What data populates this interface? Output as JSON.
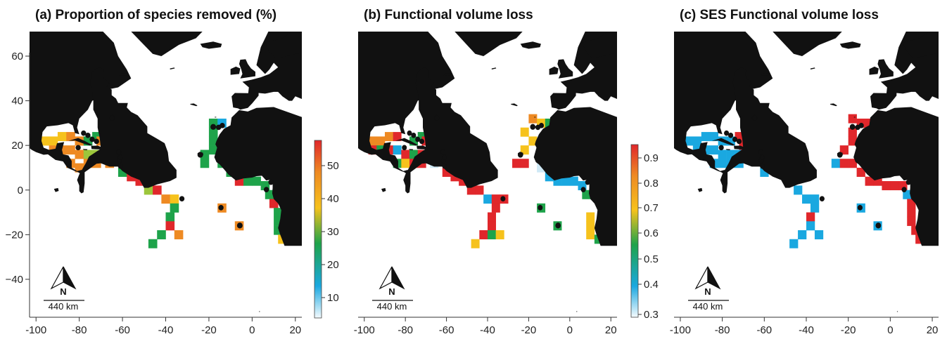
{
  "colors": {
    "land": "#111111",
    "red": "#e0272b",
    "orange": "#ee8a23",
    "yellow": "#f6c21c",
    "lime": "#9cc63b",
    "green": "#1ea34a",
    "blue": "#1aa8e0",
    "lightblue": "#cfe9f6",
    "axis": "#333333"
  },
  "x_ticks": [
    "-100",
    "-80",
    "-60",
    "-40",
    "-20",
    "0",
    "20"
  ],
  "y_ticks": [
    "60",
    "40",
    "20",
    "0",
    "−20",
    "−40"
  ],
  "scale_bar_label": "440 km",
  "north_label": "N",
  "panels": [
    {
      "id": "a",
      "title": "(a) Proportion of species removed (%)",
      "colorbar_ticks": [
        "50",
        "40",
        "30",
        "20",
        "10"
      ],
      "cells": [
        {
          "lon": -66,
          "lat": 32,
          "c": "green"
        },
        {
          "lon": -72,
          "lat": 24,
          "c": "green"
        },
        {
          "lon": -96,
          "lat": 22,
          "c": "yellow"
        },
        {
          "lon": -92,
          "lat": 22,
          "c": "yellow"
        },
        {
          "lon": -88,
          "lat": 24,
          "c": "yellow"
        },
        {
          "lon": -84,
          "lat": 24,
          "c": "orange"
        },
        {
          "lon": -80,
          "lat": 22,
          "c": "orange"
        },
        {
          "lon": -76,
          "lat": 22,
          "c": "green"
        },
        {
          "lon": -70,
          "lat": 22,
          "c": "orange"
        },
        {
          "lon": -64,
          "lat": 20,
          "c": "yellow"
        },
        {
          "lon": -92,
          "lat": 18,
          "c": "orange"
        },
        {
          "lon": -88,
          "lat": 18,
          "c": "orange"
        },
        {
          "lon": -84,
          "lat": 18,
          "c": "orange"
        },
        {
          "lon": -80,
          "lat": 16,
          "c": "orange"
        },
        {
          "lon": -76,
          "lat": 16,
          "c": "lime"
        },
        {
          "lon": -72,
          "lat": 16,
          "c": "lime"
        },
        {
          "lon": -68,
          "lat": 16,
          "c": "lime"
        },
        {
          "lon": -64,
          "lat": 16,
          "c": "lime"
        },
        {
          "lon": -60,
          "lat": 16,
          "c": "orange"
        },
        {
          "lon": -84,
          "lat": 12,
          "c": "orange"
        },
        {
          "lon": -80,
          "lat": 10,
          "c": "orange"
        },
        {
          "lon": -76,
          "lat": 12,
          "c": "orange"
        },
        {
          "lon": -72,
          "lat": 12,
          "c": "orange"
        },
        {
          "lon": -66,
          "lat": 12,
          "c": "orange"
        },
        {
          "lon": -60,
          "lat": 8,
          "c": "green"
        },
        {
          "lon": -56,
          "lat": 6,
          "c": "red"
        },
        {
          "lon": -52,
          "lat": 4,
          "c": "red"
        },
        {
          "lon": -48,
          "lat": 0,
          "c": "lime"
        },
        {
          "lon": -44,
          "lat": 0,
          "c": "red"
        },
        {
          "lon": -40,
          "lat": -4,
          "c": "orange"
        },
        {
          "lon": -36,
          "lat": -4,
          "c": "yellow"
        },
        {
          "lon": -36,
          "lat": -8,
          "c": "green"
        },
        {
          "lon": -38,
          "lat": -12,
          "c": "green"
        },
        {
          "lon": -38,
          "lat": -16,
          "c": "red"
        },
        {
          "lon": -42,
          "lat": -20,
          "c": "green"
        },
        {
          "lon": -46,
          "lat": -24,
          "c": "green"
        },
        {
          "lon": -34,
          "lat": -20,
          "c": "orange"
        },
        {
          "lon": -18,
          "lat": 30,
          "c": "green"
        },
        {
          "lon": -14,
          "lat": 30,
          "c": "blue"
        },
        {
          "lon": -18,
          "lat": 26,
          "c": "green"
        },
        {
          "lon": -18,
          "lat": 22,
          "c": "green"
        },
        {
          "lon": -18,
          "lat": 18,
          "c": "green"
        },
        {
          "lon": -22,
          "lat": 16,
          "c": "green"
        },
        {
          "lon": -22,
          "lat": 12,
          "c": "green"
        },
        {
          "lon": -14,
          "lat": 12,
          "c": "green"
        },
        {
          "lon": -10,
          "lat": 8,
          "c": "green"
        },
        {
          "lon": -6,
          "lat": 4,
          "c": "red"
        },
        {
          "lon": -2,
          "lat": 4,
          "c": "green"
        },
        {
          "lon": 2,
          "lat": 4,
          "c": "green"
        },
        {
          "lon": 6,
          "lat": 2,
          "c": "green"
        },
        {
          "lon": 8,
          "lat": -2,
          "c": "green"
        },
        {
          "lon": 10,
          "lat": -6,
          "c": "red"
        },
        {
          "lon": 12,
          "lat": -10,
          "c": "green"
        },
        {
          "lon": 12,
          "lat": -14,
          "c": "green"
        },
        {
          "lon": 12,
          "lat": -18,
          "c": "green"
        },
        {
          "lon": 14,
          "lat": -22,
          "c": "yellow"
        },
        {
          "lon": -14,
          "lat": -8,
          "c": "orange"
        },
        {
          "lon": -6,
          "lat": -16,
          "c": "orange"
        }
      ]
    },
    {
      "id": "b",
      "title": "(b) Functional volume loss",
      "colorbar_ticks": [
        "0.9",
        "0.8",
        "0.7",
        "0.6",
        "0.5",
        "0.4",
        "0.3"
      ],
      "cells": [
        {
          "lon": -66,
          "lat": 32,
          "c": "orange"
        },
        {
          "lon": -62,
          "lat": 32,
          "c": "yellow"
        },
        {
          "lon": -72,
          "lat": 24,
          "c": "green"
        },
        {
          "lon": -96,
          "lat": 22,
          "c": "orange"
        },
        {
          "lon": -92,
          "lat": 22,
          "c": "orange"
        },
        {
          "lon": -88,
          "lat": 24,
          "c": "orange"
        },
        {
          "lon": -84,
          "lat": 24,
          "c": "red"
        },
        {
          "lon": -76,
          "lat": 22,
          "c": "green"
        },
        {
          "lon": -70,
          "lat": 22,
          "c": "red"
        },
        {
          "lon": -96,
          "lat": 18,
          "c": "red"
        },
        {
          "lon": -92,
          "lat": 18,
          "c": "green"
        },
        {
          "lon": -88,
          "lat": 18,
          "c": "red"
        },
        {
          "lon": -84,
          "lat": 18,
          "c": "blue"
        },
        {
          "lon": -80,
          "lat": 16,
          "c": "red"
        },
        {
          "lon": -76,
          "lat": 16,
          "c": "green"
        },
        {
          "lon": -72,
          "lat": 16,
          "c": "red"
        },
        {
          "lon": -68,
          "lat": 16,
          "c": "red"
        },
        {
          "lon": -64,
          "lat": 16,
          "c": "red"
        },
        {
          "lon": -84,
          "lat": 12,
          "c": "green"
        },
        {
          "lon": -80,
          "lat": 12,
          "c": "yellow"
        },
        {
          "lon": -76,
          "lat": 12,
          "c": "red"
        },
        {
          "lon": -72,
          "lat": 12,
          "c": "red"
        },
        {
          "lon": -66,
          "lat": 12,
          "c": "lightblue"
        },
        {
          "lon": -60,
          "lat": 8,
          "c": "red"
        },
        {
          "lon": -56,
          "lat": 6,
          "c": "red"
        },
        {
          "lon": -52,
          "lat": 4,
          "c": "red"
        },
        {
          "lon": -48,
          "lat": 0,
          "c": "red"
        },
        {
          "lon": -44,
          "lat": 0,
          "c": "red"
        },
        {
          "lon": -40,
          "lat": -4,
          "c": "blue"
        },
        {
          "lon": -36,
          "lat": -4,
          "c": "red"
        },
        {
          "lon": -32,
          "lat": -4,
          "c": "red"
        },
        {
          "lon": -36,
          "lat": -8,
          "c": "red"
        },
        {
          "lon": -38,
          "lat": -12,
          "c": "red"
        },
        {
          "lon": -38,
          "lat": -16,
          "c": "red"
        },
        {
          "lon": -42,
          "lat": -20,
          "c": "red"
        },
        {
          "lon": -38,
          "lat": -20,
          "c": "green"
        },
        {
          "lon": -46,
          "lat": -24,
          "c": "yellow"
        },
        {
          "lon": -34,
          "lat": -20,
          "c": "yellow"
        },
        {
          "lon": -18,
          "lat": 32,
          "c": "orange"
        },
        {
          "lon": -14,
          "lat": 30,
          "c": "yellow"
        },
        {
          "lon": -10,
          "lat": 30,
          "c": "green"
        },
        {
          "lon": -22,
          "lat": 26,
          "c": "yellow"
        },
        {
          "lon": -18,
          "lat": 22,
          "c": "yellow"
        },
        {
          "lon": -22,
          "lat": 18,
          "c": "yellow"
        },
        {
          "lon": -26,
          "lat": 12,
          "c": "red"
        },
        {
          "lon": -22,
          "lat": 12,
          "c": "red"
        },
        {
          "lon": -14,
          "lat": 10,
          "c": "lightblue"
        },
        {
          "lon": -10,
          "lat": 6,
          "c": "blue"
        },
        {
          "lon": -6,
          "lat": 4,
          "c": "blue"
        },
        {
          "lon": -2,
          "lat": 4,
          "c": "blue"
        },
        {
          "lon": 2,
          "lat": 4,
          "c": "blue"
        },
        {
          "lon": 6,
          "lat": 2,
          "c": "blue"
        },
        {
          "lon": 8,
          "lat": -2,
          "c": "green"
        },
        {
          "lon": 10,
          "lat": -12,
          "c": "yellow"
        },
        {
          "lon": 10,
          "lat": -16,
          "c": "yellow"
        },
        {
          "lon": 10,
          "lat": -20,
          "c": "yellow"
        },
        {
          "lon": 14,
          "lat": -22,
          "c": "green"
        },
        {
          "lon": -14,
          "lat": -8,
          "c": "green"
        },
        {
          "lon": -6,
          "lat": -16,
          "c": "green"
        }
      ]
    },
    {
      "id": "c",
      "title": "(c) SES Functional volume loss",
      "colorbar_ticks": [],
      "cells": [
        {
          "lon": -66,
          "lat": 32,
          "c": "red"
        },
        {
          "lon": -62,
          "lat": 32,
          "c": "red"
        },
        {
          "lon": -72,
          "lat": 24,
          "c": "red"
        },
        {
          "lon": -96,
          "lat": 22,
          "c": "blue"
        },
        {
          "lon": -92,
          "lat": 22,
          "c": "blue"
        },
        {
          "lon": -88,
          "lat": 24,
          "c": "blue"
        },
        {
          "lon": -84,
          "lat": 24,
          "c": "blue"
        },
        {
          "lon": -80,
          "lat": 22,
          "c": "blue"
        },
        {
          "lon": -76,
          "lat": 22,
          "c": "blue"
        },
        {
          "lon": -70,
          "lat": 20,
          "c": "red"
        },
        {
          "lon": -92,
          "lat": 18,
          "c": "blue"
        },
        {
          "lon": -88,
          "lat": 18,
          "c": "blue"
        },
        {
          "lon": -84,
          "lat": 18,
          "c": "blue"
        },
        {
          "lon": -80,
          "lat": 16,
          "c": "blue"
        },
        {
          "lon": -76,
          "lat": 16,
          "c": "blue"
        },
        {
          "lon": -72,
          "lat": 16,
          "c": "blue"
        },
        {
          "lon": -68,
          "lat": 16,
          "c": "blue"
        },
        {
          "lon": -64,
          "lat": 16,
          "c": "blue"
        },
        {
          "lon": -84,
          "lat": 12,
          "c": "blue"
        },
        {
          "lon": -80,
          "lat": 12,
          "c": "blue"
        },
        {
          "lon": -76,
          "lat": 12,
          "c": "blue"
        },
        {
          "lon": -72,
          "lat": 12,
          "c": "blue"
        },
        {
          "lon": -60,
          "lat": 8,
          "c": "blue"
        },
        {
          "lon": -44,
          "lat": 0,
          "c": "blue"
        },
        {
          "lon": -40,
          "lat": -4,
          "c": "blue"
        },
        {
          "lon": -36,
          "lat": -4,
          "c": "blue"
        },
        {
          "lon": -36,
          "lat": -8,
          "c": "blue"
        },
        {
          "lon": -38,
          "lat": -12,
          "c": "red"
        },
        {
          "lon": -38,
          "lat": -16,
          "c": "blue"
        },
        {
          "lon": -42,
          "lat": -20,
          "c": "blue"
        },
        {
          "lon": -46,
          "lat": -24,
          "c": "blue"
        },
        {
          "lon": -34,
          "lat": -20,
          "c": "blue"
        },
        {
          "lon": -18,
          "lat": 32,
          "c": "red"
        },
        {
          "lon": -14,
          "lat": 30,
          "c": "red"
        },
        {
          "lon": -10,
          "lat": 30,
          "c": "red"
        },
        {
          "lon": -18,
          "lat": 26,
          "c": "red"
        },
        {
          "lon": -18,
          "lat": 22,
          "c": "red"
        },
        {
          "lon": -22,
          "lat": 18,
          "c": "red"
        },
        {
          "lon": -26,
          "lat": 12,
          "c": "blue"
        },
        {
          "lon": -22,
          "lat": 12,
          "c": "red"
        },
        {
          "lon": -18,
          "lat": 12,
          "c": "red"
        },
        {
          "lon": -14,
          "lat": 8,
          "c": "red"
        },
        {
          "lon": -10,
          "lat": 4,
          "c": "red"
        },
        {
          "lon": -6,
          "lat": 4,
          "c": "red"
        },
        {
          "lon": -2,
          "lat": 2,
          "c": "red"
        },
        {
          "lon": 2,
          "lat": 2,
          "c": "red"
        },
        {
          "lon": 6,
          "lat": 2,
          "c": "red"
        },
        {
          "lon": 8,
          "lat": -2,
          "c": "blue"
        },
        {
          "lon": 10,
          "lat": -6,
          "c": "red"
        },
        {
          "lon": 10,
          "lat": -10,
          "c": "red"
        },
        {
          "lon": 10,
          "lat": -14,
          "c": "red"
        },
        {
          "lon": 12,
          "lat": -18,
          "c": "red"
        },
        {
          "lon": 14,
          "lat": -22,
          "c": "red"
        },
        {
          "lon": -14,
          "lat": -8,
          "c": "blue"
        },
        {
          "lon": -6,
          "lat": -16,
          "c": "blue"
        }
      ]
    }
  ]
}
